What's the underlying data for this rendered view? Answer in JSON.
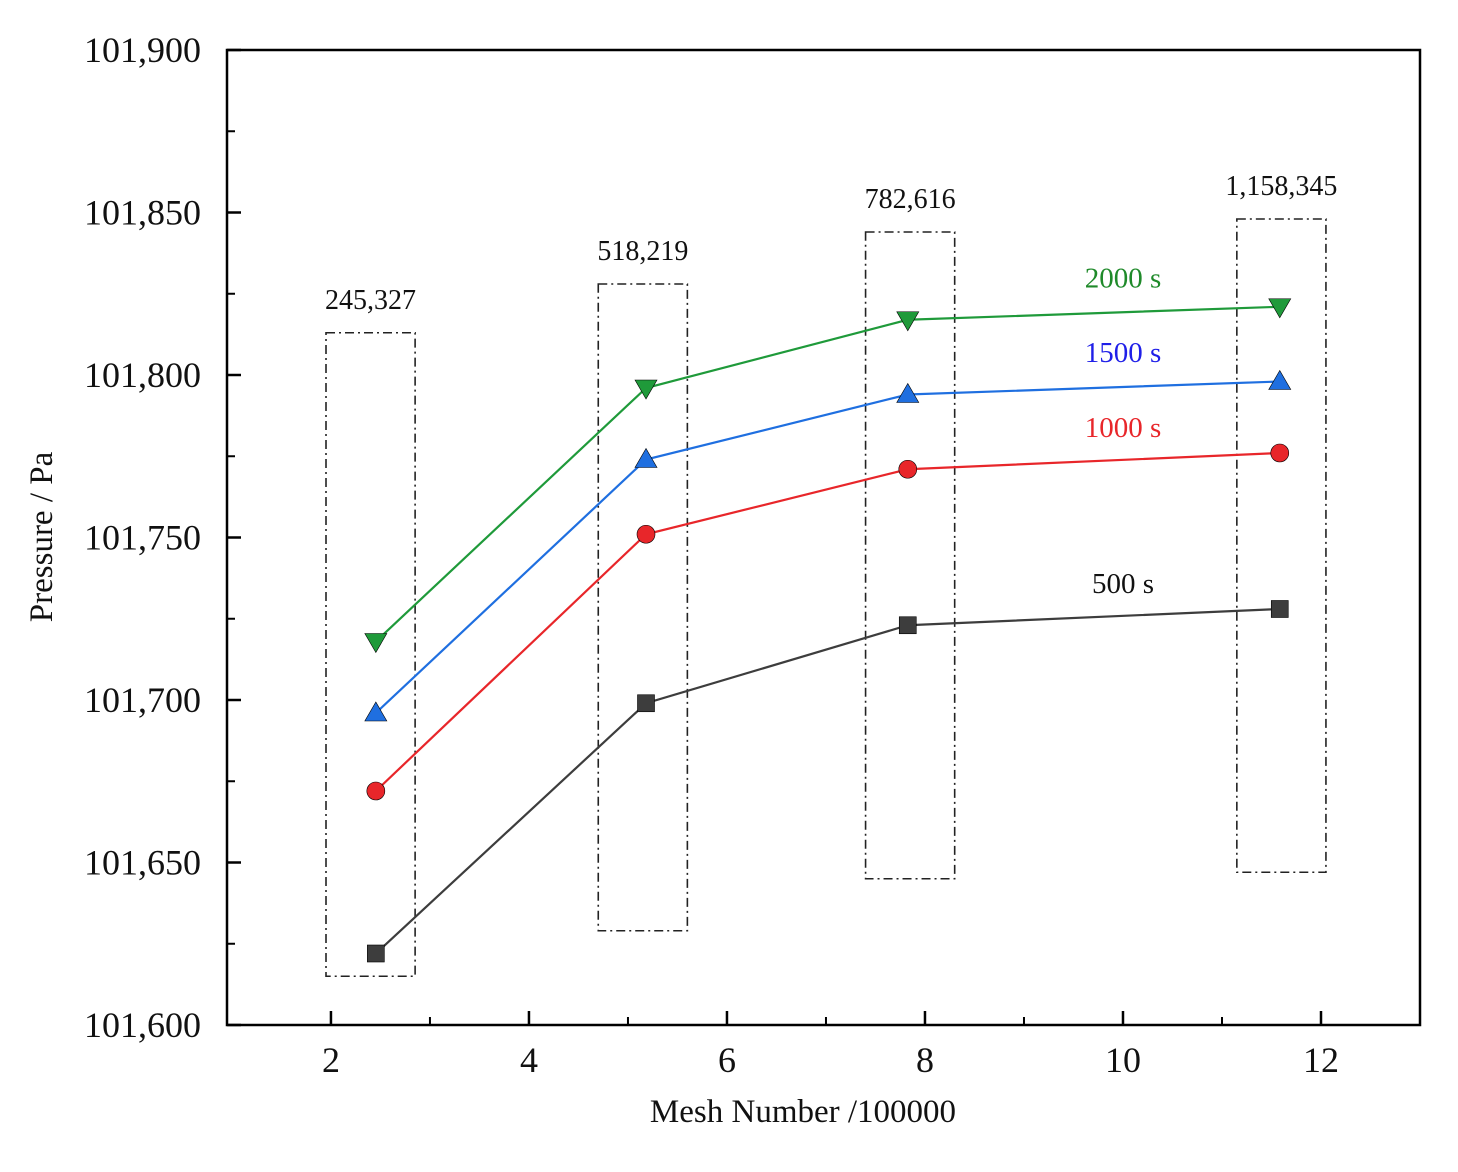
{
  "chart_data": {
    "type": "line",
    "xlabel": "Mesh Number /100000",
    "ylabel": "Pressure / Pa",
    "xlim": [
      0.95,
      13.0
    ],
    "ylim": [
      101600,
      101900
    ],
    "x_ticks": [
      {
        "value": 2,
        "label": "2"
      },
      {
        "value": 4,
        "label": "4"
      },
      {
        "value": 6,
        "label": "6"
      },
      {
        "value": 8,
        "label": "8"
      },
      {
        "value": 10,
        "label": "10"
      },
      {
        "value": 12,
        "label": "12"
      }
    ],
    "x_minor_ticks": [
      3,
      5,
      7,
      9,
      11
    ],
    "y_ticks": [
      {
        "value": 101600,
        "label": "101,600"
      },
      {
        "value": 101650,
        "label": "101,650"
      },
      {
        "value": 101700,
        "label": "101,700"
      },
      {
        "value": 101750,
        "label": "101,750"
      },
      {
        "value": 101800,
        "label": "101,800"
      },
      {
        "value": 101850,
        "label": "101,850"
      },
      {
        "value": 101900,
        "label": "101,900"
      }
    ],
    "y_minor_ticks": [
      101625,
      101675,
      101725,
      101775,
      101825,
      101875
    ],
    "x": [
      2.45327,
      5.18219,
      7.82616,
      11.58345
    ],
    "series": [
      {
        "name": "500 s",
        "color": "#3d3d3d",
        "marker": "square",
        "values": [
          101622,
          101699,
          101723,
          101728
        ]
      },
      {
        "name": "1000 s",
        "color": "#e8262a",
        "marker": "circle",
        "values": [
          101672,
          101751,
          101771,
          101776
        ]
      },
      {
        "name": "1500 s",
        "color": "#1f6fe0",
        "marker": "triangle-up",
        "values": [
          101696,
          101774,
          101794,
          101798
        ]
      },
      {
        "name": "2000 s",
        "color": "#1f9a3a",
        "marker": "triangle-down",
        "values": [
          101718,
          101796,
          101817,
          101821
        ]
      }
    ],
    "series_labels": [
      {
        "text": "500 s",
        "color": "#111111",
        "x": 10.0,
        "y": 101733
      },
      {
        "text": "1000 s",
        "color": "#e8262a",
        "x": 10.0,
        "y": 101781
      },
      {
        "text": "1500 s",
        "color": "#1f1fe8",
        "x": 10.0,
        "y": 101804
      },
      {
        "text": "2000 s",
        "color": "#1f8a2a",
        "x": 10.0,
        "y": 101827
      }
    ],
    "mesh_boxes": [
      {
        "label": "245,327",
        "x_min": 1.95,
        "x_max": 2.85,
        "y_min": 101615,
        "y_max": 101813
      },
      {
        "label": "518,219",
        "x_min": 4.7,
        "x_max": 5.6,
        "y_min": 101629,
        "y_max": 101828
      },
      {
        "label": "782,616",
        "x_min": 7.4,
        "x_max": 8.3,
        "y_min": 101645,
        "y_max": 101844
      },
      {
        "label": "1,158,345",
        "x_min": 11.15,
        "x_max": 12.05,
        "y_min": 101647,
        "y_max": 101848
      }
    ]
  }
}
